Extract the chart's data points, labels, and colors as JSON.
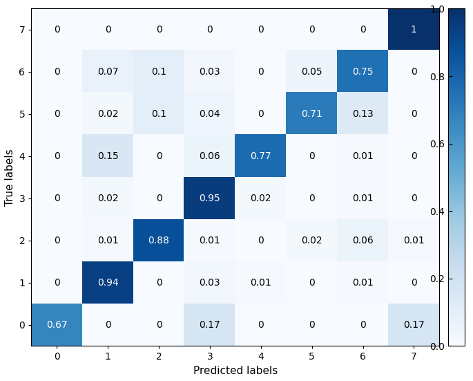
{
  "matrix": [
    [
      0.67,
      0,
      0,
      0.17,
      0,
      0,
      0,
      0.17
    ],
    [
      0,
      0.94,
      0,
      0.03,
      0.01,
      0,
      0.01,
      0
    ],
    [
      0,
      0.01,
      0.88,
      0.01,
      0,
      0.02,
      0.06,
      0.01
    ],
    [
      0,
      0.02,
      0,
      0.95,
      0.02,
      0,
      0.01,
      0
    ],
    [
      0,
      0.15,
      0,
      0.06,
      0.77,
      0,
      0.01,
      0
    ],
    [
      0,
      0.02,
      0.1,
      0.04,
      0,
      0.71,
      0.13,
      0
    ],
    [
      0,
      0.07,
      0.1,
      0.03,
      0,
      0.05,
      0.75,
      0
    ],
    [
      0,
      0,
      0,
      0,
      0,
      0,
      0,
      1
    ]
  ],
  "xlabel": "Predicted labels",
  "ylabel": "True labels",
  "tick_labels": [
    "0",
    "1",
    "2",
    "3",
    "4",
    "5",
    "6",
    "7"
  ],
  "cmap": "Blues",
  "vmin": 0.0,
  "vmax": 1.0,
  "colorbar_ticks": [
    0.0,
    0.2,
    0.4,
    0.6,
    0.8,
    1.0
  ],
  "text_threshold": 0.5,
  "dark_text_color": "white",
  "light_text_color": "black",
  "fontsize_values": 10,
  "fontsize_labels": 11,
  "fontsize_ticks": 10,
  "fig_width": 6.85,
  "fig_height": 5.51,
  "dpi": 100
}
